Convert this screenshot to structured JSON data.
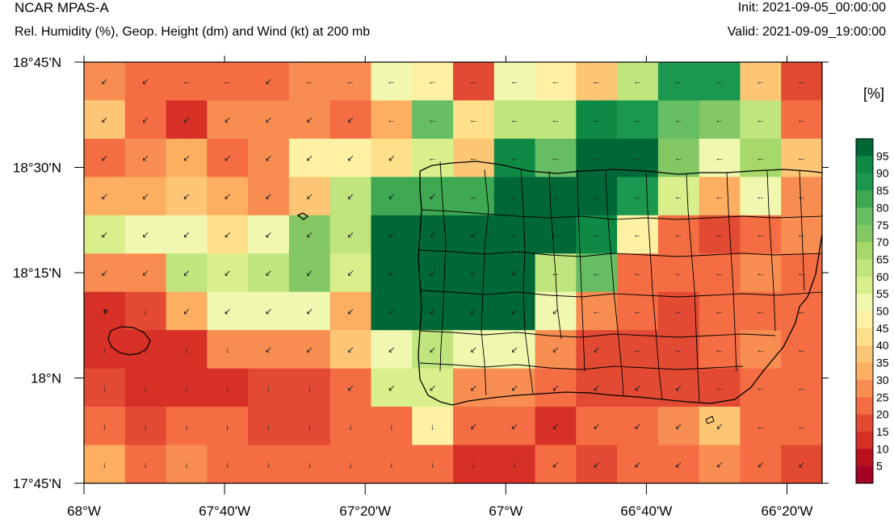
{
  "header": {
    "model": "NCAR MPAS-A",
    "description": "Rel. Humidity (%), Geop. Height (dm) and Wind (kt) at 200 mb",
    "init": "Init: 2021-09-05_00:00:00",
    "valid": "Valid: 2021-09-09_19:00:00"
  },
  "map": {
    "lon_range": [
      -68.0,
      -66.25
    ],
    "lat_range": [
      17.75,
      18.75
    ],
    "lat_labels": [
      {
        "lat": 18.75,
        "label": "18°45'N"
      },
      {
        "lat": 18.5,
        "label": "18°30'N"
      },
      {
        "lat": 18.25,
        "label": "18°15'N"
      },
      {
        "lat": 18.0,
        "label": "18°N"
      },
      {
        "lat": 17.75,
        "label": "17°45'N"
      }
    ],
    "lon_labels": [
      {
        "lon": -68.0,
        "label": "68°W"
      },
      {
        "lon": -67.6667,
        "label": "67°40'W"
      },
      {
        "lon": -67.3333,
        "label": "67°20'W"
      },
      {
        "lon": -67.0,
        "label": "67°W"
      },
      {
        "lon": -66.6667,
        "label": "66°40'W"
      },
      {
        "lon": -66.3333,
        "label": "66°20'W"
      }
    ],
    "grid_cols": 18,
    "grid_rows": 11,
    "rh_grid": [
      [
        25,
        20,
        20,
        20,
        20,
        25,
        25,
        50,
        45,
        15,
        50,
        45,
        35,
        60,
        85,
        85,
        35,
        15
      ],
      [
        35,
        20,
        10,
        25,
        25,
        25,
        20,
        30,
        75,
        40,
        60,
        60,
        90,
        85,
        75,
        70,
        60,
        20
      ],
      [
        20,
        25,
        30,
        20,
        25,
        45,
        45,
        40,
        55,
        35,
        90,
        75,
        95,
        95,
        70,
        50,
        65,
        35
      ],
      [
        30,
        30,
        35,
        30,
        25,
        35,
        60,
        80,
        80,
        80,
        95,
        95,
        95,
        85,
        55,
        30,
        50,
        25
      ],
      [
        55,
        50,
        50,
        40,
        50,
        70,
        60,
        95,
        95,
        95,
        95,
        95,
        90,
        45,
        20,
        15,
        20,
        25
      ],
      [
        25,
        25,
        60,
        55,
        60,
        70,
        55,
        95,
        95,
        95,
        95,
        60,
        75,
        20,
        20,
        20,
        25,
        20
      ],
      [
        10,
        15,
        30,
        50,
        50,
        50,
        30,
        95,
        95,
        95,
        95,
        50,
        25,
        20,
        15,
        20,
        20,
        20
      ],
      [
        10,
        10,
        10,
        25,
        25,
        25,
        35,
        50,
        60,
        50,
        50,
        25,
        15,
        15,
        15,
        20,
        25,
        20
      ],
      [
        15,
        10,
        10,
        10,
        15,
        15,
        20,
        55,
        55,
        25,
        25,
        20,
        15,
        15,
        15,
        15,
        20,
        20
      ],
      [
        20,
        15,
        20,
        20,
        15,
        15,
        20,
        20,
        45,
        20,
        20,
        10,
        20,
        20,
        25,
        35,
        20,
        20
      ],
      [
        30,
        20,
        25,
        20,
        20,
        20,
        20,
        20,
        20,
        10,
        10,
        20,
        15,
        20,
        20,
        25,
        20,
        15
      ]
    ],
    "wind_arrow_rows": [
      [
        "↙",
        "↙",
        "←",
        "←",
        "↙",
        "←",
        "←",
        "←",
        "←",
        "←",
        "←",
        "←",
        "←",
        "←",
        "←",
        "←",
        "←",
        "←"
      ],
      [
        "↙",
        "↙",
        "↙",
        "↙",
        "↙",
        "↙",
        "↙",
        "←",
        "←",
        "←",
        "←",
        "←",
        "←",
        "←",
        "←",
        "←",
        "←",
        "←"
      ],
      [
        "↙",
        "↙",
        "↙",
        "↙",
        "↙",
        "↙",
        "↙",
        "↙",
        "←",
        "←",
        "←",
        "←",
        "←",
        "←",
        "←",
        "←",
        "←",
        "←"
      ],
      [
        "↙",
        "↙",
        "↙",
        "↙",
        "↙",
        "↙",
        "↙",
        "↙",
        "↙",
        "←",
        "←",
        "←",
        "←",
        "←",
        "←",
        "←",
        "←",
        "←"
      ],
      [
        "↙",
        "↙",
        "↙",
        "↙",
        "↙",
        "↙",
        "↙",
        "↙",
        "↙",
        "↙",
        "←",
        "←",
        "←",
        "←",
        "←",
        "←",
        "←",
        "←"
      ],
      [
        "↙",
        "↙",
        "↙",
        "↙",
        "↙",
        "↙",
        "↙",
        "↙",
        "↙",
        "↙",
        "↙",
        "←",
        "←",
        "←",
        "←",
        "←",
        "←",
        "←"
      ],
      [
        "↓",
        "↓",
        "↙",
        "↙",
        "↙",
        "↙",
        "↙",
        "↙",
        "↙",
        "↙",
        "↙",
        "↙",
        "←",
        "←",
        "←",
        "←",
        "←",
        "←"
      ],
      [
        "↓",
        "↓",
        "↓",
        "↓",
        "↙",
        "↙",
        "↙",
        "↙",
        "↙",
        "↙",
        "↙",
        "↙",
        "↙",
        "←",
        "←",
        "←",
        "←",
        "←"
      ],
      [
        "↓",
        "↓",
        "↓",
        "↓",
        "↓",
        "↓",
        "↙",
        "↙",
        "↙",
        "↙",
        "↙",
        "↙",
        "↙",
        "↙",
        "↙",
        "←",
        "←",
        "←"
      ],
      [
        "↓",
        "↓",
        "↓",
        "↓",
        "↓",
        "↓",
        "↓",
        "↓",
        "↓",
        "↙",
        "↙",
        "↙",
        "↙",
        "↙",
        "↙",
        "↙",
        "←",
        "←"
      ],
      [
        "↓",
        "↓",
        "↓",
        "↓",
        "↓",
        "↓",
        "↓",
        "↓",
        "↓",
        "↓",
        "↓",
        "↙",
        "↙",
        "↙",
        "↙",
        "↙",
        "↙",
        "↙"
      ]
    ]
  },
  "colorbar": {
    "unit_label": "[%]",
    "levels": [
      5,
      10,
      15,
      20,
      25,
      30,
      35,
      40,
      45,
      50,
      55,
      60,
      65,
      70,
      75,
      80,
      85,
      90,
      95
    ],
    "colors": [
      "#a50026",
      "#b8111e",
      "#d73027",
      "#e34a33",
      "#f46d43",
      "#f88d52",
      "#fdae61",
      "#fdc675",
      "#fee08b",
      "#fef1a3",
      "#f0f8b0",
      "#d9ef8b",
      "#c0e47e",
      "#a6d96a",
      "#84c865",
      "#66bd63",
      "#3ea853",
      "#1a9850",
      "#0e8a45",
      "#006837"
    ]
  }
}
